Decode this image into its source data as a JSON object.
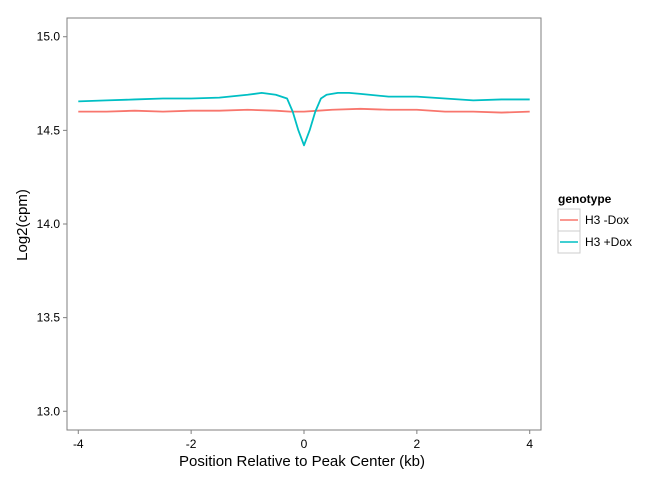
{
  "chart_data": {
    "type": "line",
    "title": "",
    "xlabel": "Position Relative to Peak Center (kb)",
    "ylabel": "Log2(cpm)",
    "xlim": [
      -4.2,
      4.2
    ],
    "ylim": [
      12.9,
      15.1
    ],
    "x_ticks": [
      -4,
      -2,
      0,
      2,
      4
    ],
    "x_tick_labels": [
      "-4",
      "-2",
      "0",
      "2",
      "4"
    ],
    "y_ticks": [
      13.0,
      13.5,
      14.0,
      14.5,
      15.0
    ],
    "y_tick_labels": [
      "13.0",
      "13.5",
      "14.0",
      "14.5",
      "15.0"
    ],
    "grid": false,
    "legend": {
      "title": "genotype",
      "placement": "right",
      "entries": [
        "H3 -Dox",
        "H3 +Dox"
      ]
    },
    "series": [
      {
        "name": "H3 -Dox",
        "color": "#F8766D",
        "x": [
          -4.0,
          -3.5,
          -3.0,
          -2.5,
          -2.0,
          -1.5,
          -1.0,
          -0.5,
          -0.25,
          0.0,
          0.25,
          0.5,
          1.0,
          1.5,
          2.0,
          2.5,
          3.0,
          3.5,
          4.0
        ],
        "y": [
          14.6,
          14.6,
          14.605,
          14.6,
          14.605,
          14.605,
          14.61,
          14.605,
          14.6,
          14.6,
          14.605,
          14.61,
          14.615,
          14.61,
          14.61,
          14.6,
          14.6,
          14.595,
          14.6
        ]
      },
      {
        "name": "H3 +Dox",
        "color": "#00BFC4",
        "x": [
          -4.0,
          -3.5,
          -3.0,
          -2.5,
          -2.0,
          -1.5,
          -1.0,
          -0.75,
          -0.5,
          -0.3,
          -0.2,
          -0.1,
          0.0,
          0.1,
          0.2,
          0.3,
          0.4,
          0.6,
          0.8,
          1.0,
          1.5,
          2.0,
          2.5,
          3.0,
          3.5,
          4.0
        ],
        "y": [
          14.655,
          14.66,
          14.665,
          14.67,
          14.67,
          14.675,
          14.69,
          14.7,
          14.69,
          14.67,
          14.6,
          14.5,
          14.42,
          14.5,
          14.6,
          14.67,
          14.69,
          14.7,
          14.7,
          14.695,
          14.68,
          14.68,
          14.67,
          14.66,
          14.665,
          14.665
        ]
      }
    ]
  }
}
